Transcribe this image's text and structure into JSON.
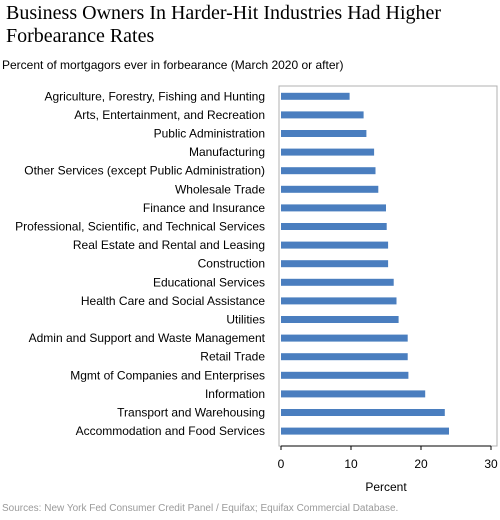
{
  "title": "Business Owners In Harder-Hit Industries Had Higher Forbearance Rates",
  "subtitle": "Percent of mortgagors ever in forbearance (March 2020 or after)",
  "source": "Sources:  New York Fed Consumer Credit Panel / Equifax; Equifax Commercial Database.",
  "colors": {
    "bar": "#4a7ebf",
    "frame": "#b0b0b0",
    "axis": "#000000"
  },
  "chart_data": {
    "type": "bar",
    "orientation": "horizontal",
    "title": "Business Owners In Harder-Hit Industries Had Higher Forbearance Rates",
    "subtitle": "Percent of mortgagors ever in forbearance (March 2020 or after)",
    "xlabel": "Percent",
    "ylabel": "",
    "xlim": [
      0,
      30
    ],
    "xticks": [
      0,
      10,
      20,
      30
    ],
    "grid": false,
    "categories": [
      "Agriculture, Forestry, Fishing and Hunting",
      "Arts, Entertainment, and Recreation",
      "Public Administration",
      "Manufacturing",
      "Other Services (except Public Administration)",
      "Wholesale Trade",
      "Finance and Insurance",
      "Professional, Scientific, and Technical Services",
      "Real Estate and Rental and Leasing",
      "Construction",
      "Educational Services",
      "Health Care and Social Assistance",
      "Utilities",
      "Admin and Support and Waste Management",
      "Retail Trade",
      "Mgmt of Companies and Enterprises",
      "Information",
      "Transport and Warehousing",
      "Accommodation and Food Services"
    ],
    "values": [
      9.8,
      11.8,
      12.2,
      13.3,
      13.5,
      13.9,
      15.0,
      15.1,
      15.3,
      15.3,
      16.1,
      16.5,
      16.8,
      18.1,
      18.1,
      18.2,
      20.6,
      23.4,
      24.0
    ]
  }
}
